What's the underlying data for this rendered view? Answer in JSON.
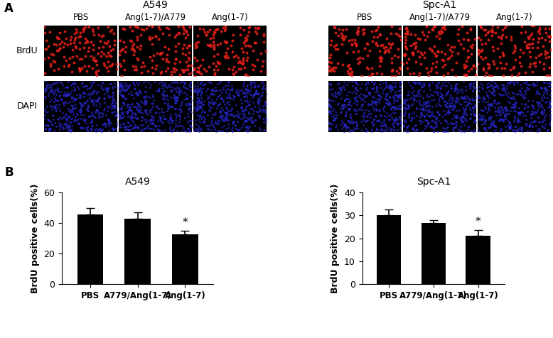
{
  "panel_a": {
    "label": "A",
    "groups": [
      {
        "title": "A549",
        "columns": [
          "PBS",
          "Ang(1-7)/A779",
          "Ang(1-7)"
        ]
      },
      {
        "title": "Spc-A1",
        "columns": [
          "PBS",
          "Ang(1-7)/A779",
          "Ang(1-7)"
        ]
      }
    ],
    "rows": [
      {
        "label": "BrdU",
        "color": "#e8201a"
      },
      {
        "label": "DAPI",
        "color": "#2a2ae0"
      }
    ]
  },
  "panel_b_label": "B",
  "chart_data": [
    {
      "type": "bar",
      "title": "A549",
      "y_label": "BrdU positive cells(%)",
      "categories": [
        "PBS",
        "A779/Ang(1-7)",
        "Ang(1-7)"
      ],
      "values": [
        45.5,
        43,
        32.5
      ],
      "error": [
        4.2,
        4.0,
        2.6
      ],
      "color": "#000000",
      "ylim": [
        0,
        60
      ],
      "yticks": [
        0,
        20,
        40,
        60
      ],
      "annotations": [
        {
          "category": "Ang(1-7)",
          "text": "*"
        }
      ]
    },
    {
      "type": "bar",
      "title": "Spc-A1",
      "y_label": "BrdU positive cells(%)",
      "categories": [
        "PBS",
        "A779/Ang(1-7)",
        "Ang(1-7)"
      ],
      "values": [
        30,
        26.7,
        21.2
      ],
      "error": [
        2.7,
        1.2,
        2.3
      ],
      "color": "#000000",
      "ylim": [
        0,
        40
      ],
      "yticks": [
        0,
        10,
        20,
        30,
        40
      ],
      "annotations": [
        {
          "category": "Ang(1-7)",
          "text": "*"
        }
      ]
    }
  ]
}
